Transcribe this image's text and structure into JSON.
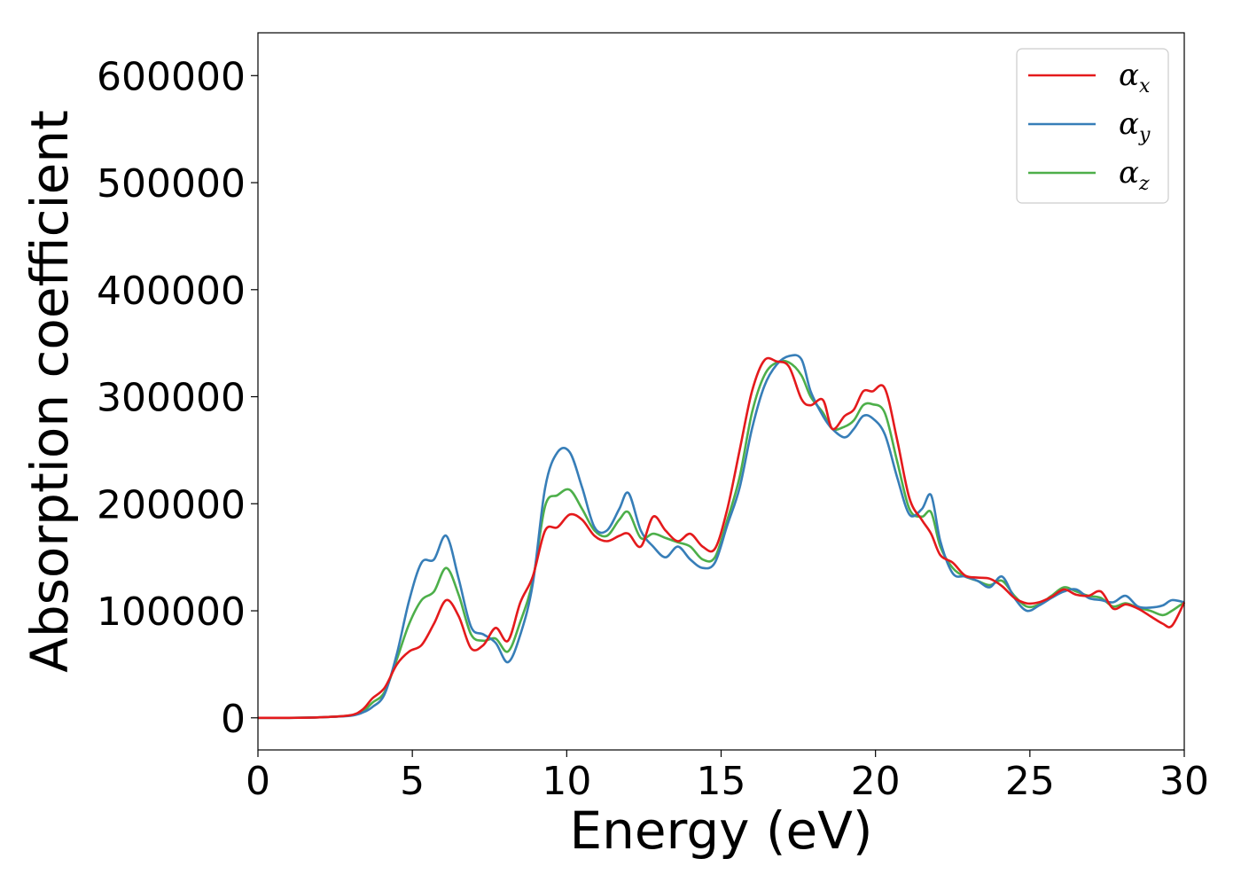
{
  "chart_data": {
    "type": "line",
    "title": "",
    "xlabel": "Energy (eV)",
    "ylabel": "Absorption coefficient",
    "xlim": [
      0,
      30
    ],
    "ylim": [
      -30000,
      640000
    ],
    "xticks": [
      0,
      5,
      10,
      15,
      20,
      25,
      30
    ],
    "yticks": [
      0,
      100000,
      200000,
      300000,
      400000,
      500000,
      600000
    ],
    "grid": false,
    "legend_position": "top-right",
    "series": [
      {
        "name": "α_x",
        "legend_main": "α",
        "legend_sub": "x",
        "color": "#e41a1c",
        "x": [
          0,
          1,
          2,
          3,
          3.4,
          3.7,
          4.1,
          4.5,
          4.9,
          5.3,
          5.7,
          6.1,
          6.5,
          6.9,
          7.3,
          7.7,
          8.1,
          8.5,
          8.9,
          9.3,
          9.7,
          10.1,
          10.5,
          10.9,
          11.3,
          11.7,
          12.0,
          12.4,
          12.8,
          13.2,
          13.6,
          14.0,
          14.4,
          14.8,
          15.2,
          15.6,
          16.0,
          16.4,
          16.8,
          17.2,
          17.6,
          17.9,
          18.3,
          18.6,
          19.0,
          19.3,
          19.6,
          19.9,
          20.3,
          20.7,
          21.1,
          21.5,
          21.8,
          22.1,
          22.5,
          22.9,
          23.3,
          23.7,
          24.1,
          24.5,
          24.9,
          25.3,
          25.7,
          26.1,
          26.5,
          26.9,
          27.3,
          27.7,
          28.1,
          28.5,
          28.9,
          29.3,
          29.6,
          30
        ],
        "values": [
          0,
          0,
          500,
          2500,
          8000,
          18000,
          28000,
          50000,
          62000,
          68000,
          88000,
          110000,
          95000,
          65000,
          68000,
          84000,
          72000,
          108000,
          132000,
          175000,
          178000,
          190000,
          185000,
          170000,
          165000,
          170000,
          172000,
          160000,
          188000,
          175000,
          165000,
          172000,
          160000,
          158000,
          195000,
          250000,
          305000,
          334000,
          333000,
          328000,
          298000,
          292000,
          297000,
          270000,
          282000,
          288000,
          305000,
          305000,
          308000,
          260000,
          205000,
          185000,
          172000,
          152000,
          145000,
          133000,
          131000,
          130000,
          123000,
          112000,
          107000,
          108000,
          113000,
          120000,
          115000,
          114000,
          118000,
          102000,
          106000,
          102000,
          95000,
          88000,
          86000,
          108000
        ]
      },
      {
        "name": "α_y",
        "legend_main": "α",
        "legend_sub": "y",
        "color": "#377eb8",
        "x": [
          0,
          1,
          2,
          3,
          3.4,
          3.7,
          4.1,
          4.5,
          4.9,
          5.3,
          5.7,
          6.1,
          6.5,
          6.9,
          7.3,
          7.7,
          8.1,
          8.5,
          8.9,
          9.3,
          9.7,
          10.1,
          10.5,
          10.9,
          11.3,
          11.7,
          12.0,
          12.4,
          12.8,
          13.2,
          13.6,
          14.0,
          14.4,
          14.8,
          15.2,
          15.6,
          16.0,
          16.4,
          16.8,
          17.2,
          17.6,
          17.9,
          18.3,
          18.6,
          19.0,
          19.3,
          19.6,
          19.9,
          20.3,
          20.7,
          21.1,
          21.5,
          21.8,
          22.1,
          22.5,
          22.9,
          23.3,
          23.7,
          24.1,
          24.5,
          24.9,
          25.3,
          25.7,
          26.1,
          26.5,
          26.9,
          27.3,
          27.7,
          28.1,
          28.5,
          28.9,
          29.3,
          29.6,
          30
        ],
        "values": [
          0,
          0,
          500,
          2000,
          5000,
          10000,
          22000,
          60000,
          110000,
          145000,
          148000,
          170000,
          130000,
          85000,
          78000,
          70000,
          52000,
          78000,
          125000,
          215000,
          248000,
          248000,
          215000,
          178000,
          175000,
          195000,
          210000,
          175000,
          160000,
          150000,
          160000,
          148000,
          140000,
          145000,
          180000,
          215000,
          270000,
          310000,
          330000,
          338000,
          335000,
          305000,
          282000,
          270000,
          262000,
          270000,
          282000,
          280000,
          265000,
          225000,
          190000,
          195000,
          208000,
          165000,
          135000,
          132000,
          128000,
          122000,
          132000,
          112000,
          100000,
          105000,
          112000,
          118000,
          120000,
          112000,
          110000,
          108000,
          114000,
          104000,
          103000,
          105000,
          110000,
          108000
        ]
      },
      {
        "name": "α_z",
        "legend_main": "α",
        "legend_sub": "z",
        "color": "#4daf4a",
        "x": [
          0,
          1,
          2,
          3,
          3.4,
          3.7,
          4.1,
          4.5,
          4.9,
          5.3,
          5.7,
          6.1,
          6.5,
          6.9,
          7.3,
          7.7,
          8.1,
          8.5,
          8.9,
          9.3,
          9.7,
          10.1,
          10.5,
          10.9,
          11.3,
          11.7,
          12.0,
          12.4,
          12.8,
          13.2,
          13.6,
          14.0,
          14.4,
          14.8,
          15.2,
          15.6,
          16.0,
          16.4,
          16.8,
          17.2,
          17.6,
          17.9,
          18.3,
          18.6,
          19.0,
          19.3,
          19.6,
          19.9,
          20.3,
          20.7,
          21.1,
          21.5,
          21.8,
          22.1,
          22.5,
          22.9,
          23.3,
          23.7,
          24.1,
          24.5,
          24.9,
          25.3,
          25.7,
          26.1,
          26.5,
          26.9,
          27.3,
          27.7,
          28.1,
          28.5,
          28.9,
          29.3,
          29.6,
          30
        ],
        "values": [
          0,
          0,
          500,
          2200,
          6000,
          14000,
          24000,
          55000,
          88000,
          110000,
          118000,
          140000,
          115000,
          78000,
          72000,
          74000,
          62000,
          90000,
          128000,
          198000,
          208000,
          213000,
          195000,
          175000,
          170000,
          185000,
          192000,
          168000,
          172000,
          168000,
          164000,
          160000,
          148000,
          150000,
          185000,
          225000,
          285000,
          320000,
          332000,
          332000,
          320000,
          300000,
          285000,
          270000,
          272000,
          278000,
          292000,
          293000,
          285000,
          240000,
          195000,
          188000,
          192000,
          160000,
          140000,
          132000,
          128000,
          124000,
          128000,
          114000,
          104000,
          106000,
          114000,
          122000,
          118000,
          114000,
          112000,
          104000,
          107000,
          103000,
          100000,
          96000,
          100000,
          108000
        ]
      }
    ]
  }
}
